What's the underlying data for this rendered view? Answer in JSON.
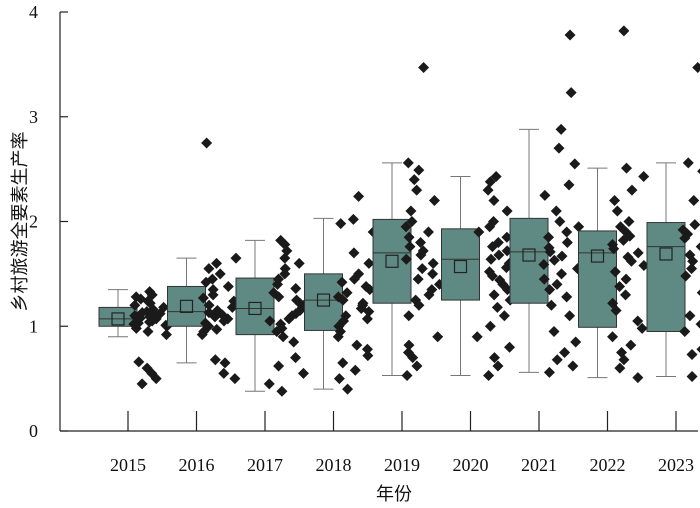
{
  "colors": {
    "box_fill": "#5f8a84",
    "point": "#1a1a1a",
    "axis": "#222222"
  },
  "chart_data": {
    "type": "box",
    "ylabel": "乡村旅游全要素生产率",
    "xlabel": "年份",
    "ylim": [
      0,
      4
    ],
    "yticks": [
      0,
      1,
      2,
      3,
      4
    ],
    "categories": [
      "2015",
      "2016",
      "2017",
      "2018",
      "2019",
      "2020",
      "2021",
      "2022",
      "2023"
    ],
    "boxes": [
      {
        "year": "2015",
        "min": 0.9,
        "q1": 1.0,
        "median": 1.07,
        "q3": 1.18,
        "max": 1.35,
        "mean": 1.07
      },
      {
        "year": "2016",
        "min": 0.65,
        "q1": 1.0,
        "median": 1.14,
        "q3": 1.38,
        "max": 1.65,
        "mean": 1.19
      },
      {
        "year": "2017",
        "min": 0.38,
        "q1": 0.92,
        "median": 1.17,
        "q3": 1.46,
        "max": 1.82,
        "mean": 1.17
      },
      {
        "year": "2018",
        "min": 0.4,
        "q1": 0.96,
        "median": 1.25,
        "q3": 1.5,
        "max": 2.03,
        "mean": 1.25
      },
      {
        "year": "2019",
        "min": 0.53,
        "q1": 1.22,
        "median": 1.7,
        "q3": 2.02,
        "max": 2.56,
        "mean": 1.62
      },
      {
        "year": "2020",
        "min": 0.53,
        "q1": 1.25,
        "median": 1.64,
        "q3": 1.93,
        "max": 2.43,
        "mean": 1.57
      },
      {
        "year": "2021",
        "min": 0.56,
        "q1": 1.22,
        "median": 1.71,
        "q3": 2.03,
        "max": 2.88,
        "mean": 1.68
      },
      {
        "year": "2022",
        "min": 0.51,
        "q1": 0.99,
        "median": 1.7,
        "q3": 1.91,
        "max": 2.51,
        "mean": 1.67
      },
      {
        "year": "2023",
        "min": 0.52,
        "q1": 0.95,
        "median": 1.76,
        "q3": 1.99,
        "max": 2.56,
        "mean": 1.69
      }
    ],
    "points": [
      [
        1.33,
        1.3,
        1.28,
        1.26,
        1.24,
        1.22,
        1.2,
        1.18,
        1.16,
        1.14,
        1.13,
        1.12,
        1.11,
        1.1,
        1.09,
        1.08,
        1.07,
        1.06,
        1.05,
        1.04,
        1.03,
        1.02,
        1.01,
        1.0,
        0.98,
        0.95,
        0.92,
        0.66,
        0.6,
        0.55,
        0.5,
        0.45
      ],
      [
        2.75,
        1.65,
        1.6,
        1.55,
        1.5,
        1.45,
        1.42,
        1.38,
        1.35,
        1.3,
        1.27,
        1.24,
        1.2,
        1.18,
        1.15,
        1.13,
        1.11,
        1.09,
        1.07,
        1.05,
        1.03,
        1.0,
        0.97,
        0.95,
        0.92,
        0.68,
        0.65,
        0.55,
        0.5
      ],
      [
        1.82,
        1.78,
        1.72,
        1.65,
        1.6,
        1.55,
        1.5,
        1.45,
        1.4,
        1.36,
        1.32,
        1.28,
        1.25,
        1.22,
        1.2,
        1.18,
        1.15,
        1.12,
        1.1,
        1.07,
        1.05,
        1.02,
        0.98,
        0.95,
        0.9,
        0.85,
        0.7,
        0.62,
        0.55,
        0.45,
        0.38
      ],
      [
        2.24,
        2.02,
        1.98,
        1.9,
        1.7,
        1.6,
        1.5,
        1.45,
        1.42,
        1.38,
        1.35,
        1.32,
        1.28,
        1.25,
        1.22,
        1.2,
        1.17,
        1.14,
        1.1,
        1.07,
        1.05,
        1.0,
        0.95,
        0.9,
        0.82,
        0.78,
        0.72,
        0.65,
        0.58,
        0.5,
        0.4
      ],
      [
        3.47,
        2.56,
        2.49,
        2.4,
        2.3,
        2.2,
        2.1,
        2.0,
        1.95,
        1.9,
        1.85,
        1.8,
        1.76,
        1.72,
        1.68,
        1.64,
        1.6,
        1.55,
        1.5,
        1.45,
        1.4,
        1.35,
        1.3,
        1.25,
        1.2,
        1.1,
        0.9,
        0.82,
        0.75,
        0.7,
        0.62,
        0.53
      ],
      [
        2.43,
        2.38,
        2.3,
        2.2,
        2.1,
        2.0,
        1.95,
        1.9,
        1.85,
        1.8,
        1.76,
        1.72,
        1.68,
        1.64,
        1.6,
        1.56,
        1.52,
        1.48,
        1.44,
        1.4,
        1.35,
        1.3,
        1.25,
        1.18,
        1.1,
        1.0,
        0.9,
        0.8,
        0.7,
        0.62,
        0.53
      ],
      [
        3.78,
        3.23,
        2.88,
        2.7,
        2.55,
        2.35,
        2.25,
        2.1,
        2.0,
        1.95,
        1.9,
        1.85,
        1.8,
        1.75,
        1.71,
        1.67,
        1.63,
        1.59,
        1.55,
        1.5,
        1.45,
        1.4,
        1.35,
        1.28,
        1.2,
        1.1,
        0.95,
        0.85,
        0.75,
        0.68,
        0.62,
        0.56
      ],
      [
        3.82,
        2.51,
        2.43,
        2.3,
        2.2,
        2.1,
        2.0,
        1.95,
        1.9,
        1.86,
        1.82,
        1.78,
        1.74,
        1.7,
        1.66,
        1.62,
        1.58,
        1.52,
        1.45,
        1.38,
        1.3,
        1.22,
        1.15,
        1.05,
        0.98,
        0.9,
        0.82,
        0.75,
        0.68,
        0.6,
        0.51
      ],
      [
        3.47,
        2.56,
        2.48,
        2.4,
        2.3,
        2.2,
        2.1,
        2.02,
        1.97,
        1.92,
        1.88,
        1.84,
        1.8,
        1.76,
        1.72,
        1.68,
        1.62,
        1.55,
        1.48,
        1.4,
        1.32,
        1.25,
        1.18,
        1.1,
        1.02,
        0.95,
        0.88,
        0.82,
        0.78,
        0.73,
        0.52
      ]
    ]
  }
}
